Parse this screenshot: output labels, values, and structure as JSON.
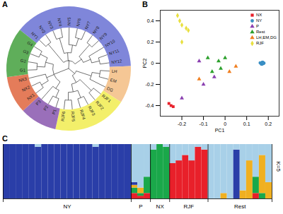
{
  "chart_data": [
    {
      "type": "dendrogram",
      "label": "A",
      "tree": [
        [
          [
            "NY1",
            "NY2"
          ],
          [
            [
              "NY3",
              "NY4"
            ],
            [
              "NY5",
              [
                "NY6",
                "NY7"
              ]
            ]
          ],
          [
            [
              "NY8",
              "NY9"
            ],
            [
              "NY10",
              [
                "NY11",
                "NY12"
              ]
            ]
          ]
        ],
        [
          [
            [
              "LH",
              "EM"
            ],
            "DG"
          ],
          [
            [
              "RJF1",
              "RJF2"
            ],
            [
              [
                "RJF3",
                "RJF4"
              ],
              [
                "RJF5",
                "RJF6"
              ]
            ]
          ]
        ],
        [
          [
            [
              "P1",
              "P2"
            ],
            "P3"
          ],
          [
            [
              "NX1",
              "NX2"
            ],
            "NX3"
          ],
          [
            [
              "G1",
              "G2"
            ],
            [
              "G3",
              "G4"
            ]
          ]
        ]
      ],
      "groups": [
        {
          "color": "#7f86da",
          "leaves": [
            "NY1",
            "NY2",
            "NY3",
            "NY4",
            "NY5",
            "NY6",
            "NY7",
            "NY8",
            "NY9",
            "NY10",
            "NY11",
            "NY12"
          ]
        },
        {
          "color": "#f5c795",
          "leaves": [
            "LH",
            "EM",
            "DG"
          ]
        },
        {
          "color": "#f3ef6a",
          "leaves": [
            "RJF1",
            "RJF2",
            "RJF3",
            "RJF4",
            "RJF5",
            "RJF6"
          ]
        },
        {
          "color": "#9a6fba",
          "leaves": [
            "P1",
            "P2",
            "P3"
          ]
        },
        {
          "color": "#e47c5a",
          "leaves": [
            "NX1",
            "NX2",
            "NX3"
          ]
        },
        {
          "color": "#5fae5a",
          "leaves": [
            "G1",
            "G2",
            "G3",
            "G4"
          ]
        }
      ]
    },
    {
      "type": "scatter",
      "label": "B",
      "x_label": "PC1",
      "y_label": "PC2",
      "xlim": [
        -0.3,
        0.25
      ],
      "ylim": [
        -0.5,
        0.5
      ],
      "xticks": [
        -0.2,
        -0.1,
        0,
        0.1,
        0.2
      ],
      "yticks": [
        -0.4,
        -0.2,
        0,
        0.2,
        0.4
      ],
      "legend": "top-right",
      "series": [
        {
          "name": "NX",
          "color": "#e8202a",
          "marker": "square",
          "x": [
            -0.26,
            -0.25,
            -0.24
          ],
          "y": [
            -0.38,
            -0.4,
            -0.41
          ]
        },
        {
          "name": "NY",
          "color": "#3a8fc4",
          "marker": "circle",
          "x": [
            0.165,
            0.17,
            0.175,
            0.18,
            0.168,
            0.172,
            0.178,
            0.162,
            0.174,
            0.17
          ],
          "y": [
            0,
            0.005,
            -0.005,
            0.002,
            -0.008,
            0.008,
            -0.002,
            0.004,
            0.01,
            -0.01
          ]
        },
        {
          "name": "P",
          "color": "#8a3fb0",
          "marker": "triangle",
          "x": [
            -0.2,
            -0.12,
            -0.05,
            -0.1
          ],
          "y": [
            -0.33,
            0.02,
            -0.13,
            -0.2
          ]
        },
        {
          "name": "Rest",
          "color": "#2ca02c",
          "marker": "triangle",
          "x": [
            -0.08,
            -0.03,
            -0.02,
            0,
            -0.06
          ],
          "y": [
            0.05,
            0.02,
            -0.05,
            0.05,
            -0.08
          ]
        },
        {
          "name": "LH,EM,DG",
          "color": "#f07f20",
          "marker": "triangle",
          "x": [
            -0.12,
            0.02,
            0.05
          ],
          "y": [
            -0.15,
            -0.08,
            -0.03
          ]
        },
        {
          "name": "RJF",
          "color": "#e8e040",
          "marker": "diamond",
          "x": [
            -0.22,
            -0.21,
            -0.2,
            -0.18,
            -0.17,
            -0.2
          ],
          "y": [
            0.45,
            0.4,
            0.36,
            0.33,
            0.31,
            0.2
          ]
        }
      ]
    },
    {
      "type": "bar",
      "stacked": true,
      "label": "C",
      "annotation": "K=5",
      "ylim": [
        0,
        1
      ],
      "tick_labels": false,
      "groups": [
        {
          "label": "NY",
          "count": 20
        },
        {
          "label": "P",
          "count": 3
        },
        {
          "label": "NX",
          "count": 3
        },
        {
          "label": "RJF",
          "count": 6
        },
        {
          "label": "Rest",
          "count": 10
        }
      ],
      "series": [
        {
          "color": "#e8202a",
          "values": [
            0,
            0,
            0,
            0,
            0,
            0,
            0,
            0,
            0,
            0,
            0,
            0,
            0,
            0,
            0,
            0,
            0,
            0,
            0,
            0,
            0.1,
            0.05,
            0.1,
            0,
            0,
            0,
            0.65,
            0.7,
            0.8,
            0.7,
            0.95,
            0.9,
            0,
            0,
            0,
            0,
            0,
            0,
            0,
            0.1,
            0,
            0
          ]
        },
        {
          "color": "#1aa84a",
          "values": [
            0,
            0,
            0,
            0,
            0,
            0,
            0,
            0,
            0,
            0,
            0,
            0,
            0,
            0,
            0,
            0,
            0,
            0,
            0,
            0,
            0.1,
            0.05,
            0.3,
            0.9,
            1,
            0.95,
            0,
            0,
            0,
            0,
            0,
            0,
            0,
            0,
            0,
            0,
            0,
            0,
            0,
            0.3,
            0.1,
            0
          ]
        },
        {
          "color": "#f0b020",
          "values": [
            0,
            0,
            0,
            0,
            0,
            0,
            0,
            0,
            0,
            0,
            0,
            0,
            0,
            0,
            0,
            0,
            0,
            0,
            0,
            0,
            0.05,
            0.1,
            0,
            0,
            0,
            0,
            0,
            0,
            0,
            0,
            0,
            0,
            0,
            0,
            0.1,
            0,
            0,
            0.15,
            0.7,
            0,
            0.7,
            0.3
          ]
        },
        {
          "color": "#2a3ea8",
          "values": [
            1,
            1,
            1,
            1,
            1,
            0.95,
            1,
            1,
            1,
            1,
            1,
            1,
            1,
            1,
            0.95,
            1,
            1,
            1,
            1,
            1,
            0.05,
            0,
            0,
            0,
            0,
            0,
            0,
            0,
            0,
            0,
            0,
            0,
            0,
            0,
            0,
            0,
            0.9,
            0,
            0,
            0,
            0,
            0
          ]
        },
        {
          "color": "#a8d0e8",
          "values": [
            0,
            0,
            0,
            0,
            0,
            0.05,
            0,
            0,
            0,
            0,
            0,
            0,
            0,
            0,
            0.05,
            0,
            0,
            0,
            0,
            0,
            0.7,
            0.8,
            0.6,
            0.1,
            0,
            0.05,
            0.35,
            0.3,
            0.2,
            0.3,
            0.05,
            0.1,
            1,
            1,
            0.9,
            1,
            0.1,
            0.85,
            0.3,
            0.6,
            0.2,
            0.7
          ]
        }
      ]
    }
  ]
}
